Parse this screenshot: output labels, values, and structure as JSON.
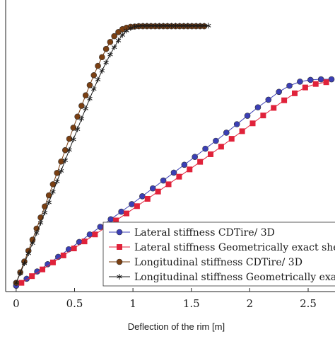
{
  "chart_data": {
    "type": "line",
    "xlabel": "Deflection of the rim [m]",
    "ylabel": "",
    "xlim": [
      -0.09,
      2.73
    ],
    "ylim": [
      0,
      1
    ],
    "xticks": [
      0,
      0.5,
      1,
      1.5,
      2,
      2.5
    ],
    "xtick_labels": [
      "0",
      "0.5",
      "1",
      "1.5",
      "2",
      "2.5"
    ],
    "grid": false,
    "legend_position": "bottom-right",
    "series": [
      {
        "name": "Lateral stiffness CDTire/ 3D",
        "color": "#3b3fb5",
        "marker": "circle",
        "x": [
          0,
          0.09,
          0.18,
          0.27,
          0.36,
          0.45,
          0.54,
          0.63,
          0.72,
          0.81,
          0.9,
          0.99,
          1.08,
          1.17,
          1.26,
          1.35,
          1.44,
          1.53,
          1.62,
          1.71,
          1.8,
          1.89,
          1.98,
          2.07,
          2.16,
          2.25,
          2.34,
          2.43,
          2.52,
          2.61,
          2.7
        ],
        "y": [
          0.02,
          0.044,
          0.069,
          0.094,
          0.119,
          0.145,
          0.17,
          0.196,
          0.222,
          0.248,
          0.274,
          0.3,
          0.327,
          0.354,
          0.381,
          0.408,
          0.435,
          0.462,
          0.49,
          0.517,
          0.545,
          0.574,
          0.603,
          0.632,
          0.658,
          0.685,
          0.706,
          0.72,
          0.726,
          0.728,
          0.728
        ]
      },
      {
        "name": "Lateral stiffness Geometrically exact she",
        "color": "#e0223a",
        "marker": "square",
        "x": [
          0.045,
          0.135,
          0.225,
          0.315,
          0.405,
          0.495,
          0.585,
          0.675,
          0.765,
          0.855,
          0.945,
          1.035,
          1.125,
          1.215,
          1.305,
          1.395,
          1.485,
          1.575,
          1.665,
          1.755,
          1.845,
          1.935,
          2.025,
          2.115,
          2.205,
          2.295,
          2.385,
          2.475,
          2.565,
          2.655
        ],
        "y": [
          0.03,
          0.053,
          0.076,
          0.1,
          0.124,
          0.148,
          0.172,
          0.196,
          0.22,
          0.244,
          0.268,
          0.293,
          0.318,
          0.343,
          0.368,
          0.394,
          0.419,
          0.445,
          0.471,
          0.497,
          0.524,
          0.55,
          0.577,
          0.604,
          0.63,
          0.656,
          0.68,
          0.7,
          0.712,
          0.718
        ]
      },
      {
        "name": "Longitudinal stiffness CDTire/ 3D",
        "color": "#7a3f12",
        "marker": "circle",
        "x": [
          0,
          0.035,
          0.07,
          0.105,
          0.14,
          0.175,
          0.21,
          0.245,
          0.28,
          0.315,
          0.35,
          0.385,
          0.42,
          0.455,
          0.49,
          0.525,
          0.56,
          0.595,
          0.63,
          0.665,
          0.7,
          0.735,
          0.77,
          0.805,
          0.84,
          0.875,
          0.91,
          0.945,
          0.98,
          1.015,
          1.05,
          1.085,
          1.12,
          1.155,
          1.19,
          1.225,
          1.26,
          1.295,
          1.33,
          1.365,
          1.4,
          1.435,
          1.47,
          1.505,
          1.54,
          1.575,
          1.61
        ],
        "y": [
          0.03,
          0.066,
          0.103,
          0.14,
          0.178,
          0.216,
          0.254,
          0.292,
          0.33,
          0.368,
          0.407,
          0.446,
          0.485,
          0.524,
          0.562,
          0.6,
          0.637,
          0.673,
          0.708,
          0.742,
          0.774,
          0.804,
          0.832,
          0.856,
          0.876,
          0.89,
          0.9,
          0.905,
          0.908,
          0.909,
          0.91,
          0.91,
          0.91,
          0.91,
          0.91,
          0.91,
          0.91,
          0.91,
          0.91,
          0.91,
          0.91,
          0.91,
          0.91,
          0.91,
          0.91,
          0.91,
          0.91
        ]
      },
      {
        "name": "Longitudinal stiffness Geometrically exa",
        "color": "#1a1a1a",
        "marker": "star",
        "x": [
          0,
          0.035,
          0.07,
          0.105,
          0.14,
          0.175,
          0.21,
          0.245,
          0.28,
          0.315,
          0.35,
          0.385,
          0.42,
          0.455,
          0.49,
          0.525,
          0.56,
          0.595,
          0.63,
          0.665,
          0.7,
          0.735,
          0.77,
          0.805,
          0.84,
          0.875,
          0.91,
          0.945,
          0.98,
          1.015,
          1.05,
          1.085,
          1.12,
          1.155,
          1.19,
          1.225,
          1.26,
          1.295,
          1.33,
          1.365,
          1.4,
          1.435,
          1.47,
          1.505,
          1.54,
          1.575,
          1.61,
          1.645
        ],
        "y": [
          0.03,
          0.063,
          0.097,
          0.131,
          0.166,
          0.201,
          0.236,
          0.271,
          0.306,
          0.342,
          0.378,
          0.414,
          0.45,
          0.486,
          0.522,
          0.557,
          0.593,
          0.628,
          0.662,
          0.695,
          0.727,
          0.757,
          0.786,
          0.813,
          0.838,
          0.861,
          0.88,
          0.895,
          0.904,
          0.909,
          0.911,
          0.912,
          0.912,
          0.912,
          0.912,
          0.912,
          0.912,
          0.912,
          0.912,
          0.912,
          0.912,
          0.912,
          0.912,
          0.912,
          0.912,
          0.912,
          0.912,
          0.912
        ]
      }
    ]
  }
}
